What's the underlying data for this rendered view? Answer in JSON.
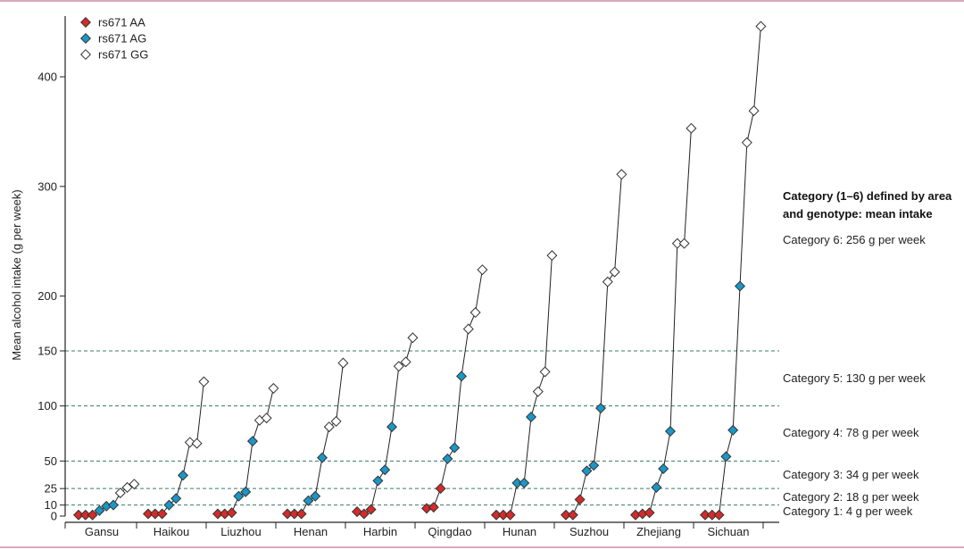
{
  "chart_data": {
    "type": "line",
    "ylabel": "Mean alcohol intake (g per week)",
    "xlabel": "",
    "y_ticks": [
      0,
      10,
      25,
      50,
      100,
      150,
      200,
      300,
      400
    ],
    "y_breaks": [
      0,
      10,
      25,
      50,
      100,
      150
    ],
    "y_scale_note": "piecewise: 0–150 expanded scale, 150–450 compressed scale",
    "ylim": [
      0,
      450
    ],
    "grid": "dashed horizontal lines at 10, 25, 50, 100, 150",
    "legend_position": "top-left",
    "legend": [
      {
        "name": "rs671 AA",
        "color": "#d62a2a",
        "marker": "diamond-filled"
      },
      {
        "name": "rs671 AG",
        "color": "#1a97c6",
        "marker": "diamond-filled"
      },
      {
        "name": "rs671 GG",
        "color": "#ffffff",
        "marker": "diamond-open"
      }
    ],
    "categories": [
      "Gansu",
      "Haikou",
      "Liuzhou",
      "Henan",
      "Harbin",
      "Qingdao",
      "Hunan",
      "Suzhou",
      "Zhejiang",
      "Sichuan"
    ],
    "areas": [
      {
        "name": "Gansu",
        "AA": [
          1,
          1,
          1
        ],
        "AG": [
          5,
          9,
          10
        ],
        "GG": [
          21,
          26,
          29
        ]
      },
      {
        "name": "Haikou",
        "AA": [
          2,
          2,
          2
        ],
        "AG": [
          10,
          16,
          37
        ],
        "GG": [
          67,
          66,
          122
        ]
      },
      {
        "name": "Liuzhou",
        "AA": [
          2,
          2,
          3
        ],
        "AG": [
          18,
          22,
          68
        ],
        "GG": [
          87,
          89,
          116
        ]
      },
      {
        "name": "Henan",
        "AA": [
          2,
          2,
          2
        ],
        "AG": [
          14,
          18,
          53
        ],
        "GG": [
          81,
          86,
          139
        ]
      },
      {
        "name": "Harbin",
        "AA": [
          4,
          2,
          6
        ],
        "AG": [
          32,
          42,
          81
        ],
        "GG": [
          136,
          140,
          162
        ]
      },
      {
        "name": "Qingdao",
        "AA": [
          7,
          8,
          25
        ],
        "AG": [
          52,
          62,
          127
        ],
        "GG": [
          170,
          185,
          224
        ]
      },
      {
        "name": "Hunan",
        "AA": [
          1,
          1,
          1
        ],
        "AG": [
          30,
          30,
          90
        ],
        "GG": [
          113,
          131,
          237
        ]
      },
      {
        "name": "Suzhou",
        "AA": [
          1,
          1,
          15
        ],
        "AG": [
          41,
          46,
          98
        ],
        "GG": [
          213,
          222,
          311
        ]
      },
      {
        "name": "Zhejiang",
        "AA": [
          1,
          2,
          3
        ],
        "AG": [
          26,
          43,
          77
        ],
        "GG": [
          248,
          248,
          353
        ]
      },
      {
        "name": "Sichuan",
        "AA": [
          1,
          1,
          1
        ],
        "AG": [
          54,
          78,
          209
        ],
        "GG": [
          340,
          369,
          446
        ]
      }
    ],
    "annotation_heading": [
      "Category (1–6) defined by area",
      "and genotype: mean intake"
    ],
    "category_labels": [
      {
        "label": "Category 6: 256 g per week",
        "value": 256
      },
      {
        "label": "Category 5: 130 g per week",
        "value": 130
      },
      {
        "label": "Category 4: 78 g per week",
        "value": 78
      },
      {
        "label": "Category 3: 34 g per week",
        "value": 34
      },
      {
        "label": "Category 2: 18 g per week",
        "value": 18
      },
      {
        "label": "Category 1: 4 g per week",
        "value": 4
      }
    ],
    "colors": {
      "AA": "#d62a2a",
      "AG": "#1a97c6",
      "GG": "#ffffff",
      "line": "#222222",
      "grid": "#3d7a6a"
    }
  }
}
